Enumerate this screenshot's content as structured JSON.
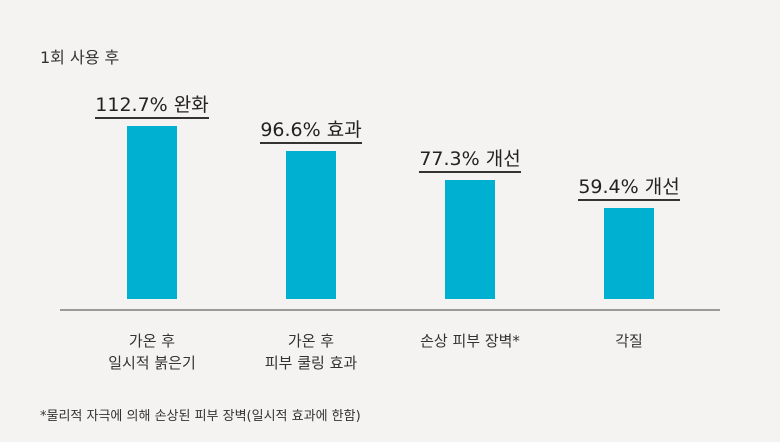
{
  "chart_data": {
    "type": "bar",
    "title": "1회 사용 후",
    "categories": [
      [
        "가온 후",
        "일시적 붉은기"
      ],
      [
        "가온 후",
        "피부 쿨링 효과"
      ],
      [
        "손상 피부 장벽*"
      ],
      [
        "각질"
      ]
    ],
    "values": [
      112.7,
      96.6,
      77.3,
      59.4
    ],
    "data_labels": [
      "112.7% 완화",
      "96.6% 효과",
      "77.3% 개선",
      "59.4% 개선"
    ],
    "color": "#00b0d0",
    "grid": false,
    "ylim": [
      0,
      112.7
    ],
    "footnote": "*물리적 자극에 의해 손상된 피부 장벽(일시적 효과에 한함)"
  }
}
